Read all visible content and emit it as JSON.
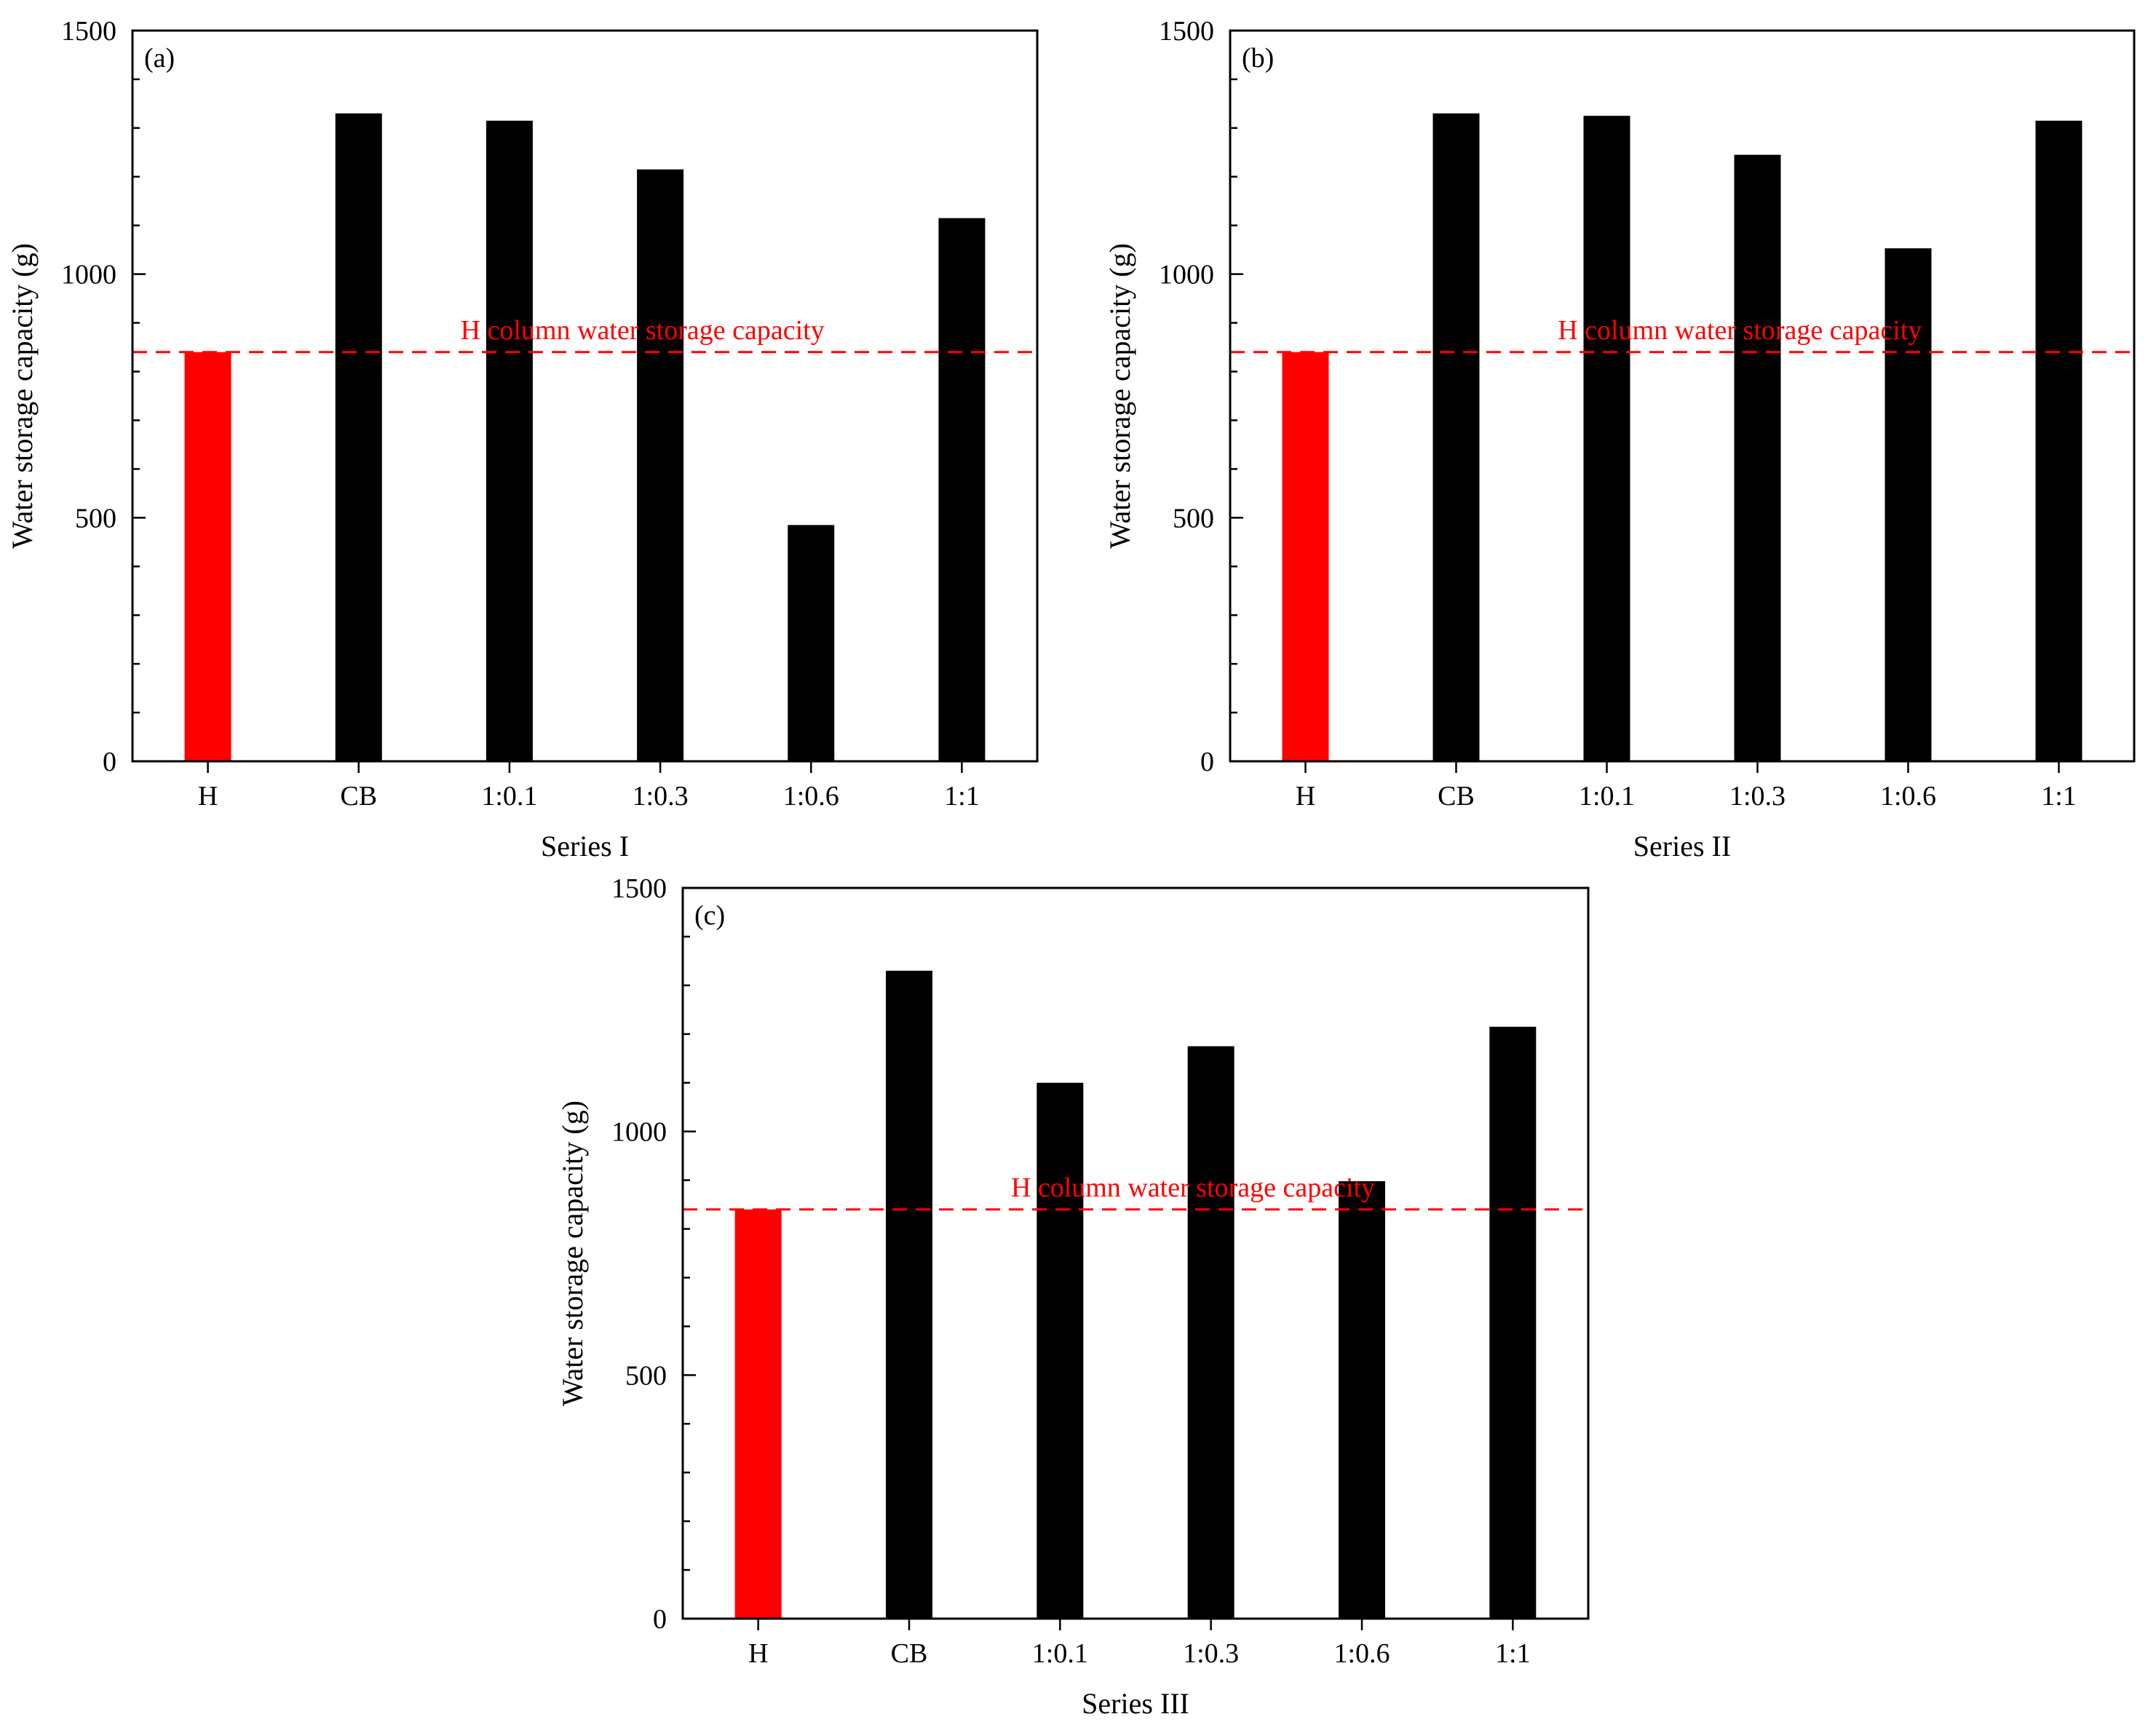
{
  "chart_data": [
    {
      "type": "bar",
      "panel_label": "(a)",
      "categories": [
        "H",
        "CB",
        "1:0.1",
        "1:0.3",
        "1:0.6",
        "1:1"
      ],
      "values": [
        840,
        1330,
        1315,
        1215,
        485,
        1115
      ],
      "bar_colors": [
        "#ff0000",
        "#000000",
        "#000000",
        "#000000",
        "#000000",
        "#000000"
      ],
      "title": "",
      "xlabel": "Series I",
      "ylabel": "Water storage capacity (g)",
      "ylim": [
        0,
        1500
      ],
      "yticks": [
        0,
        500,
        1000,
        1500
      ],
      "ytick_labels": [
        "0",
        "500",
        "1000",
        "1500"
      ],
      "minor_tick_step": 100,
      "reference_line": {
        "value": 840,
        "label": "H column water storage capacity",
        "color": "#ff0000",
        "style": "dashed"
      },
      "grid": false,
      "legend": "none"
    },
    {
      "type": "bar",
      "panel_label": "(b)",
      "categories": [
        "H",
        "CB",
        "1:0.1",
        "1:0.3",
        "1:0.6",
        "1:1"
      ],
      "values": [
        840,
        1330,
        1325,
        1245,
        1053,
        1315
      ],
      "bar_colors": [
        "#ff0000",
        "#000000",
        "#000000",
        "#000000",
        "#000000",
        "#000000"
      ],
      "title": "",
      "xlabel": "Series II",
      "ylabel": "Water storage capacity (g)",
      "ylim": [
        0,
        1500
      ],
      "yticks": [
        0,
        500,
        1000,
        1500
      ],
      "ytick_labels": [
        "0",
        "500",
        "1000",
        "1500"
      ],
      "minor_tick_step": 100,
      "reference_line": {
        "value": 840,
        "label": "H column water storage capacity",
        "color": "#ff0000",
        "style": "dashed"
      },
      "grid": false,
      "legend": "none"
    },
    {
      "type": "bar",
      "panel_label": "(c)",
      "categories": [
        "H",
        "CB",
        "1:0.1",
        "1:0.3",
        "1:0.6",
        "1:1"
      ],
      "values": [
        840,
        1330,
        1100,
        1175,
        898,
        1215
      ],
      "bar_colors": [
        "#ff0000",
        "#000000",
        "#000000",
        "#000000",
        "#000000",
        "#000000"
      ],
      "title": "",
      "xlabel": "Series III",
      "ylabel": "Water storage capacity (g)",
      "ylim": [
        0,
        1500
      ],
      "yticks": [
        0,
        500,
        1000,
        1500
      ],
      "ytick_labels": [
        "0",
        "500",
        "1000",
        "1500"
      ],
      "minor_tick_step": 100,
      "reference_line": {
        "value": 840,
        "label": "H column water storage capacity",
        "color": "#ff0000",
        "style": "dashed"
      },
      "grid": false,
      "legend": "none"
    }
  ]
}
